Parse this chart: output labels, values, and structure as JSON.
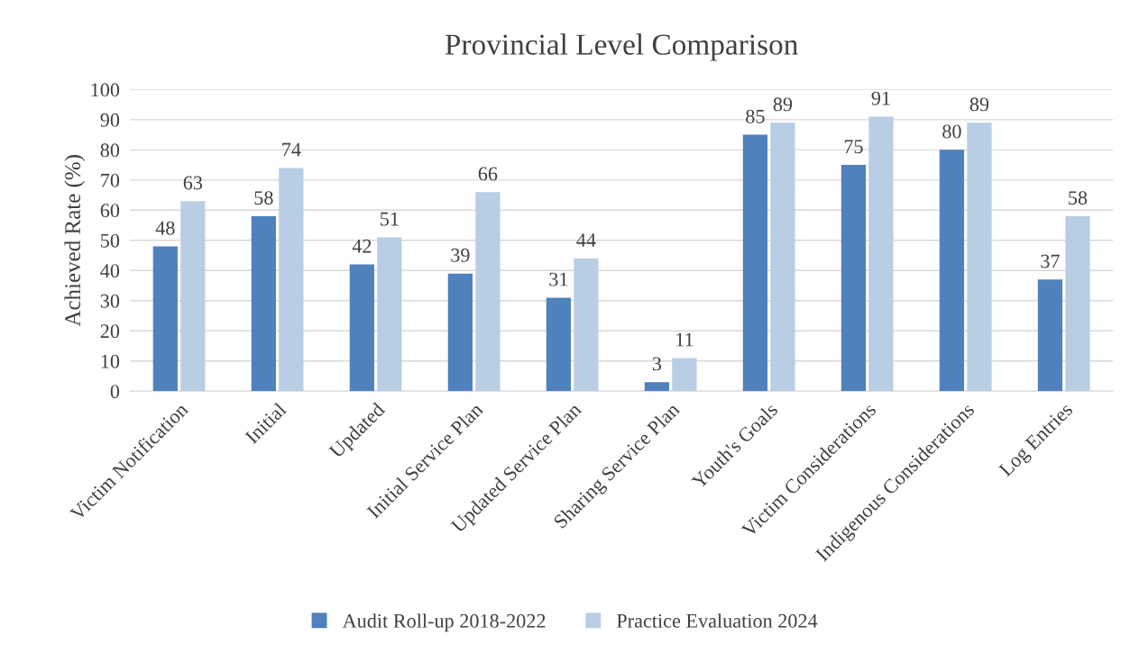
{
  "chart_data": {
    "type": "bar",
    "title": "Provincial Level Comparison",
    "ylabel": "Achieved Rate (%)",
    "categories": [
      "Victim Notification",
      "Initial",
      "Updated",
      "Initial Service Plan",
      "Updated Service Plan",
      "Sharing Service Plan",
      "Youth's Goals",
      "Victim Considerations",
      "Indigenous Considerations",
      "Log Entries"
    ],
    "series": [
      {
        "name": "Audit Roll-up 2018-2022",
        "color": "#4f81bd",
        "values": [
          48,
          58,
          42,
          39,
          31,
          3,
          85,
          75,
          80,
          37
        ]
      },
      {
        "name": "Practice Evaluation 2024",
        "color": "#b9cde5",
        "values": [
          63,
          74,
          51,
          66,
          44,
          11,
          89,
          91,
          89,
          58
        ]
      }
    ],
    "ylim": [
      0,
      100
    ],
    "yticks": [
      0,
      10,
      20,
      30,
      40,
      50,
      60,
      70,
      80,
      90,
      100
    ],
    "grid": "y",
    "legend": "bottom",
    "data_labels": true
  }
}
